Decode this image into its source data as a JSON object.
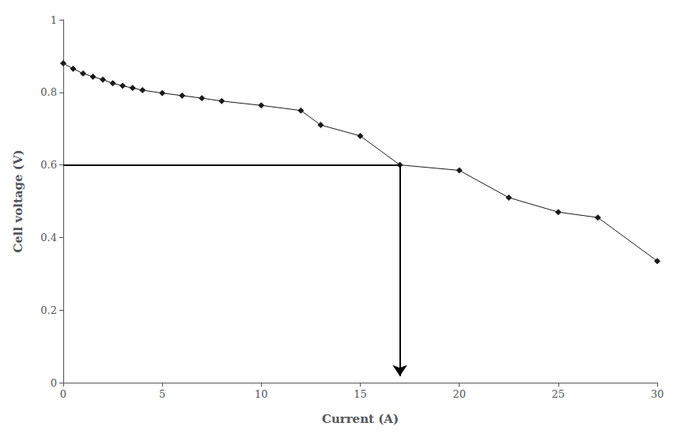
{
  "chart_data": {
    "type": "line",
    "x": [
      0,
      0.5,
      1,
      1.5,
      2,
      2.5,
      3,
      3.5,
      4,
      5,
      6,
      7,
      8,
      10,
      12,
      13,
      15,
      17,
      20,
      22.5,
      25,
      27,
      30
    ],
    "values": [
      0.88,
      0.865,
      0.852,
      0.843,
      0.835,
      0.825,
      0.818,
      0.812,
      0.806,
      0.798,
      0.791,
      0.784,
      0.776,
      0.764,
      0.75,
      0.71,
      0.68,
      0.6,
      0.585,
      0.51,
      0.47,
      0.455,
      0.335
    ],
    "color": "#1a1a1a",
    "marker": "diamond",
    "xlabel": "Current (A)",
    "ylabel": "Cell voltage (V)",
    "xlim": [
      0,
      30
    ],
    "ylim": [
      0,
      1.0
    ],
    "xticks": [
      0,
      5,
      10,
      15,
      20,
      25,
      30
    ],
    "yticks": [
      0,
      0.2,
      0.4,
      0.6,
      0.8,
      1
    ],
    "grid": false,
    "annotations": [
      {
        "type": "line",
        "x": [
          0.0,
          17.0
        ],
        "y": [
          0.6,
          0.6
        ],
        "color": "black"
      },
      {
        "type": "arrow",
        "x": [
          17.0,
          17.0
        ],
        "y": [
          0.6,
          0.018
        ],
        "color": "black"
      }
    ]
  }
}
